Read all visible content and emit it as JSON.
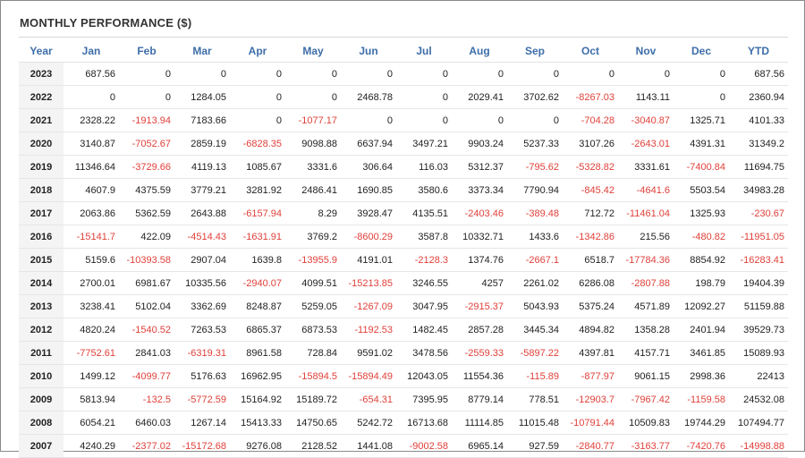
{
  "title": "MONTHLY PERFORMANCE ($)",
  "headers": [
    "Year",
    "Jan",
    "Feb",
    "Mar",
    "Apr",
    "May",
    "Jun",
    "Jul",
    "Aug",
    "Sep",
    "Oct",
    "Nov",
    "Dec",
    "YTD"
  ],
  "rows": [
    {
      "year": "2023",
      "cells": [
        "687.56",
        "0",
        "0",
        "0",
        "0",
        "0",
        "0",
        "0",
        "0",
        "0",
        "0",
        "0",
        "687.56"
      ]
    },
    {
      "year": "2022",
      "cells": [
        "0",
        "0",
        "1284.05",
        "0",
        "0",
        "2468.78",
        "0",
        "2029.41",
        "3702.62",
        "-8267.03",
        "1143.11",
        "0",
        "2360.94"
      ]
    },
    {
      "year": "2021",
      "cells": [
        "2328.22",
        "-1913.94",
        "7183.66",
        "0",
        "-1077.17",
        "0",
        "0",
        "0",
        "0",
        "-704.28",
        "-3040.87",
        "1325.71",
        "4101.33"
      ]
    },
    {
      "year": "2020",
      "cells": [
        "3140.87",
        "-7052.67",
        "2859.19",
        "-6828.35",
        "9098.88",
        "6637.94",
        "3497.21",
        "9903.24",
        "5237.33",
        "3107.26",
        "-2643.01",
        "4391.31",
        "31349.2"
      ]
    },
    {
      "year": "2019",
      "cells": [
        "11346.64",
        "-3729.66",
        "4119.13",
        "1085.67",
        "3331.6",
        "306.64",
        "116.03",
        "5312.37",
        "-795.62",
        "-5328.82",
        "3331.61",
        "-7400.84",
        "11694.75"
      ]
    },
    {
      "year": "2018",
      "cells": [
        "4607.9",
        "4375.59",
        "3779.21",
        "3281.92",
        "2486.41",
        "1690.85",
        "3580.6",
        "3373.34",
        "7790.94",
        "-845.42",
        "-4641.6",
        "5503.54",
        "34983.28"
      ]
    },
    {
      "year": "2017",
      "cells": [
        "2063.86",
        "5362.59",
        "2643.88",
        "-6157.94",
        "8.29",
        "3928.47",
        "4135.51",
        "-2403.46",
        "-389.48",
        "712.72",
        "-11461.04",
        "1325.93",
        "-230.67"
      ]
    },
    {
      "year": "2016",
      "cells": [
        "-15141.7",
        "422.09",
        "-4514.43",
        "-1631.91",
        "3769.2",
        "-8600.29",
        "3587.8",
        "10332.71",
        "1433.6",
        "-1342.86",
        "215.56",
        "-480.82",
        "-11951.05"
      ]
    },
    {
      "year": "2015",
      "cells": [
        "5159.6",
        "-10393.58",
        "2907.04",
        "1639.8",
        "-13955.9",
        "4191.01",
        "-2128.3",
        "1374.76",
        "-2667.1",
        "6518.7",
        "-17784.36",
        "8854.92",
        "-16283.41"
      ]
    },
    {
      "year": "2014",
      "cells": [
        "2700.01",
        "6981.67",
        "10335.56",
        "-2940.07",
        "4099.51",
        "-15213.85",
        "3246.55",
        "4257",
        "2261.02",
        "6286.08",
        "-2807.88",
        "198.79",
        "19404.39"
      ]
    },
    {
      "year": "2013",
      "cells": [
        "3238.41",
        "5102.04",
        "3362.69",
        "8248.87",
        "5259.05",
        "-1267.09",
        "3047.95",
        "-2915.37",
        "5043.93",
        "5375.24",
        "4571.89",
        "12092.27",
        "51159.88"
      ]
    },
    {
      "year": "2012",
      "cells": [
        "4820.24",
        "-1540.52",
        "7263.53",
        "6865.37",
        "6873.53",
        "-1192.53",
        "1482.45",
        "2857.28",
        "3445.34",
        "4894.82",
        "1358.28",
        "2401.94",
        "39529.73"
      ]
    },
    {
      "year": "2011",
      "cells": [
        "-7752.61",
        "2841.03",
        "-6319.31",
        "8961.58",
        "728.84",
        "9591.02",
        "3478.56",
        "-2559.33",
        "-5897.22",
        "4397.81",
        "4157.71",
        "3461.85",
        "15089.93"
      ]
    },
    {
      "year": "2010",
      "cells": [
        "1499.12",
        "-4099.77",
        "5176.63",
        "16962.95",
        "-15894.5",
        "-15894.49",
        "12043.05",
        "11554.36",
        "-115.89",
        "-877.97",
        "9061.15",
        "2998.36",
        "22413"
      ]
    },
    {
      "year": "2009",
      "cells": [
        "5813.94",
        "-132.5",
        "-5772.59",
        "15164.92",
        "15189.72",
        "-654.31",
        "7395.95",
        "8779.14",
        "778.51",
        "-12903.7",
        "-7967.42",
        "-1159.58",
        "24532.08"
      ]
    },
    {
      "year": "2008",
      "cells": [
        "6054.21",
        "6460.03",
        "1267.14",
        "15413.33",
        "14750.65",
        "5242.72",
        "16713.68",
        "11114.85",
        "11015.48",
        "-10791.44",
        "10509.83",
        "19744.29",
        "107494.77"
      ]
    },
    {
      "year": "2007",
      "cells": [
        "4240.29",
        "-2377.02",
        "-15172.68",
        "9276.08",
        "2128.52",
        "1441.08",
        "-9002.58",
        "6965.14",
        "927.59",
        "-2840.77",
        "-3163.77",
        "-7420.76",
        "-14998.88"
      ]
    }
  ]
}
